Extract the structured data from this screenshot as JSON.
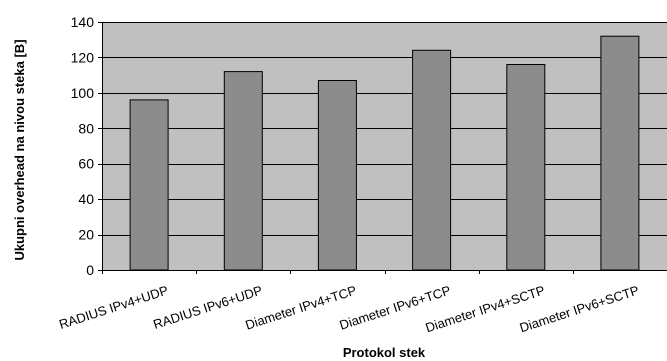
{
  "chart_data": {
    "type": "bar",
    "categories": [
      "RADIUS IPv4+UDP",
      "RADIUS IPv6+UDP",
      "Diameter IPv4+TCP",
      "Diameter IPv6+TCP",
      "Diameter IPv4+SCTP",
      "Diameter IPv6+SCTP"
    ],
    "values": [
      96,
      112,
      107,
      124,
      116,
      132
    ],
    "title": "",
    "xlabel": "Protokol stek",
    "ylabel": "Ukupni overhead na nivou steka [B]",
    "ylim": [
      0,
      140
    ],
    "yticks": [
      0,
      20,
      40,
      60,
      80,
      100,
      120,
      140
    ],
    "grid": true,
    "legend": "none",
    "colors": {
      "plot_background": "#c0c0c0",
      "bar_fill": "#8c8c8c",
      "bar_stroke": "#000000",
      "gridline": "#000000"
    }
  }
}
